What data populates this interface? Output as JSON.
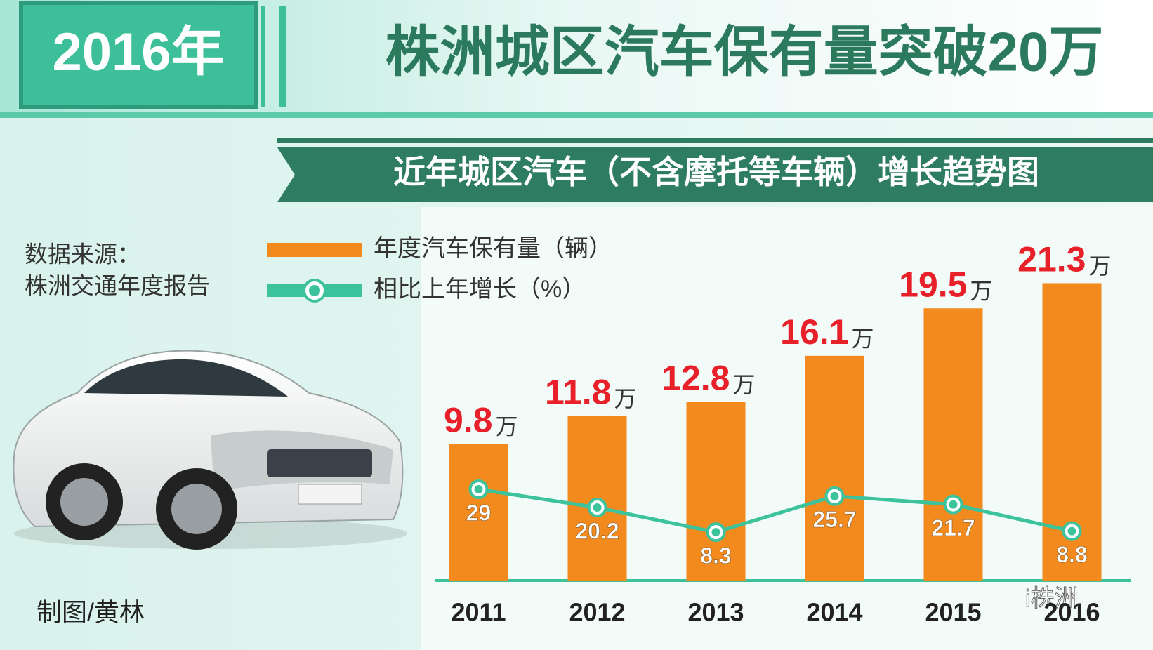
{
  "header": {
    "year": "2016年",
    "title": "株洲城区汽车保有量突破20万"
  },
  "source": {
    "label": "数据来源：",
    "name": "株洲交通年度报告"
  },
  "credit": "制图/黄林",
  "watermark": "i株洲",
  "chart_data": {
    "type": "combo",
    "title": "近年城区汽车（不含摩托等车辆）增长趋势图",
    "categories": [
      "2011",
      "2012",
      "2013",
      "2014",
      "2015",
      "2016"
    ],
    "series": [
      {
        "name": "年度汽车保有量（辆）",
        "type": "bar",
        "color": "#f28a1e",
        "unit": "万",
        "values": [
          9.8,
          11.8,
          12.8,
          16.1,
          19.5,
          21.3
        ]
      },
      {
        "name": "相比上年增长（%）",
        "type": "line",
        "axis": "y2",
        "color": "#3cc39b",
        "values": [
          29,
          20.2,
          8.3,
          25.7,
          21.7,
          8.8
        ]
      }
    ],
    "ylim": [
      0,
      26
    ],
    "y2lim": [
      -15,
      160
    ]
  }
}
